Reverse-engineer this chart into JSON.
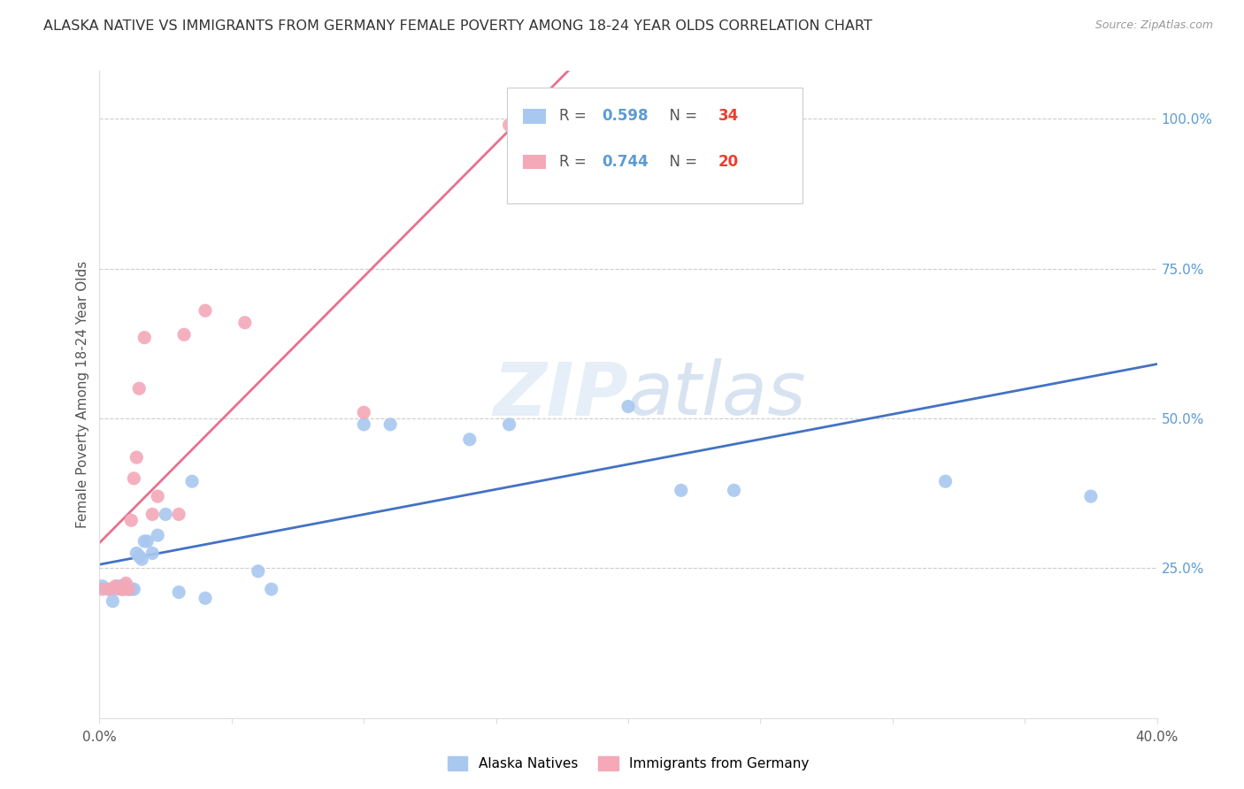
{
  "title": "ALASKA NATIVE VS IMMIGRANTS FROM GERMANY FEMALE POVERTY AMONG 18-24 YEAR OLDS CORRELATION CHART",
  "source": "Source: ZipAtlas.com",
  "ylabel": "Female Poverty Among 18-24 Year Olds",
  "xlim": [
    0.0,
    0.4
  ],
  "ylim": [
    0.0,
    1.08
  ],
  "legend_blue_label": "Alaska Natives",
  "legend_pink_label": "Immigrants from Germany",
  "R_blue": 0.598,
  "N_blue": 34,
  "R_pink": 0.744,
  "N_pink": 20,
  "blue_color": "#A8C8F0",
  "pink_color": "#F4A8B8",
  "blue_line_color": "#4472C4",
  "pink_line_color": "#E87090",
  "watermark": "ZIPatlas",
  "blue_x": [
    0.001,
    0.003,
    0.005,
    0.006,
    0.007,
    0.008,
    0.009,
    0.01,
    0.011,
    0.012,
    0.013,
    0.014,
    0.015,
    0.016,
    0.017,
    0.018,
    0.02,
    0.022,
    0.025,
    0.03,
    0.035,
    0.04,
    0.06,
    0.065,
    0.1,
    0.11,
    0.14,
    0.155,
    0.175,
    0.2,
    0.22,
    0.24,
    0.32,
    0.375
  ],
  "blue_y": [
    0.22,
    0.215,
    0.195,
    0.215,
    0.22,
    0.22,
    0.215,
    0.22,
    0.215,
    0.215,
    0.215,
    0.275,
    0.27,
    0.265,
    0.295,
    0.295,
    0.275,
    0.305,
    0.34,
    0.21,
    0.395,
    0.2,
    0.245,
    0.215,
    0.49,
    0.49,
    0.465,
    0.49,
    0.87,
    0.52,
    0.38,
    0.38,
    0.395,
    0.37
  ],
  "pink_x": [
    0.001,
    0.004,
    0.006,
    0.008,
    0.009,
    0.01,
    0.011,
    0.012,
    0.013,
    0.014,
    0.015,
    0.017,
    0.02,
    0.022,
    0.03,
    0.032,
    0.04,
    0.055,
    0.1,
    0.155
  ],
  "pink_y": [
    0.215,
    0.215,
    0.22,
    0.215,
    0.215,
    0.225,
    0.215,
    0.33,
    0.4,
    0.435,
    0.55,
    0.635,
    0.34,
    0.37,
    0.34,
    0.64,
    0.68,
    0.66,
    0.51,
    0.99
  ]
}
